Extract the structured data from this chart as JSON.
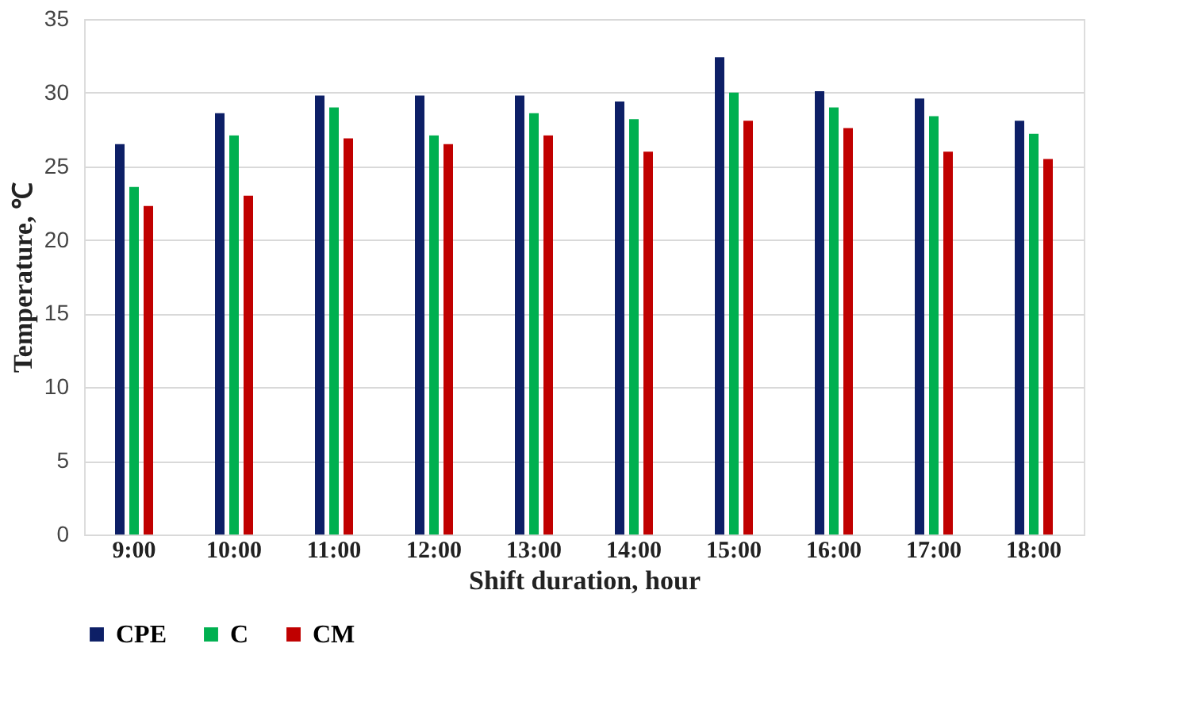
{
  "chart_data": {
    "type": "bar",
    "xlabel": "Shift duration, hour",
    "ylabel": "Temperature, ℃",
    "categories": [
      "9:00",
      "10:00",
      "11:00",
      "12:00",
      "13:00",
      "14:00",
      "15:00",
      "16:00",
      "17:00",
      "18:00"
    ],
    "series": [
      {
        "name": "CPE",
        "color": "#0d1f66",
        "values": [
          26.5,
          28.6,
          29.8,
          29.8,
          29.8,
          29.4,
          32.4,
          30.1,
          29.6,
          28.1
        ]
      },
      {
        "name": "C",
        "color": "#00b050",
        "values": [
          23.6,
          27.1,
          29.0,
          27.1,
          28.6,
          28.2,
          30.0,
          29.0,
          28.4,
          27.2
        ]
      },
      {
        "name": "CM",
        "color": "#c00000",
        "values": [
          22.3,
          23.0,
          26.9,
          26.5,
          27.1,
          26.0,
          28.1,
          27.6,
          26.0,
          25.5
        ]
      }
    ],
    "ylim": [
      0,
      35
    ],
    "yticks": [
      0,
      5,
      10,
      15,
      20,
      25,
      30,
      35
    ],
    "grid": "y",
    "legend": "bottom"
  }
}
